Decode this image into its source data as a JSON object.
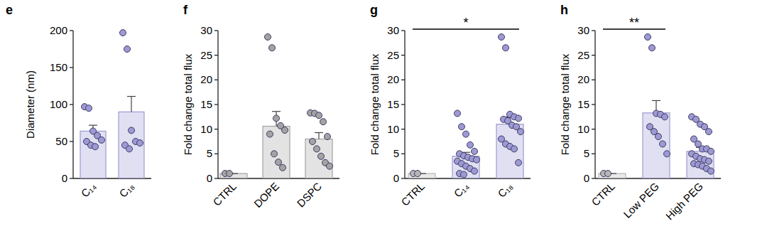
{
  "chart_data": [
    {
      "type": "bar",
      "title": "e",
      "ylabel": "Diameter (nm)",
      "categories": [
        "C₁₄",
        "C₁₈"
      ],
      "values": [
        64,
        90
      ],
      "errors": [
        8,
        21
      ],
      "points": [
        [
          97,
          95,
          64,
          58,
          52,
          50,
          45,
          43
        ],
        [
          197,
          175,
          65,
          50,
          48,
          45,
          40
        ]
      ],
      "colors": [
        "#9d99d3",
        "#9d99d3"
      ],
      "ylim": [
        0,
        200
      ],
      "yticks": [
        0,
        50,
        100,
        150,
        200
      ]
    },
    {
      "type": "bar",
      "title": "f",
      "ylabel": "Fold change total flux",
      "categories": [
        "CTRL",
        "DOPE",
        "DSPC"
      ],
      "values": [
        1,
        10.6,
        8
      ],
      "errors": [
        0,
        3,
        1.3
      ],
      "points": [
        [
          1,
          1
        ],
        [
          28.7,
          26.5,
          12.2,
          10.7,
          9.8,
          9,
          5,
          3.3,
          2.2
        ],
        [
          13.3,
          13.2,
          12.8,
          11.5,
          8.5,
          7.5,
          6,
          4.5,
          3.2,
          2.5
        ]
      ],
      "colors": [
        "#a3a3a3",
        "#a3a3a3",
        "#a3a3a3"
      ],
      "ylim": [
        0,
        30
      ],
      "yticks": [
        0,
        5,
        10,
        15,
        20,
        25,
        30
      ]
    },
    {
      "type": "bar",
      "title": "g",
      "ylabel": "Fold change total flux",
      "categories": [
        "CTRL",
        "C₁₄",
        "C₁₈"
      ],
      "values": [
        1,
        4.5,
        11
      ],
      "errors": [
        0,
        0.8,
        1.5
      ],
      "points": [
        [
          1,
          1
        ],
        [
          13.2,
          10.5,
          9,
          6.8,
          5.5,
          5,
          4.6,
          4.3,
          4,
          3.8,
          3.5,
          3,
          2.5,
          2,
          1.5,
          1,
          0.8
        ],
        [
          28.7,
          26.5,
          13,
          12.5,
          12.2,
          12,
          11.7,
          10.8,
          10.5,
          9.5,
          8,
          7,
          6.5,
          6,
          3.2
        ]
      ],
      "colors": [
        "#b5b5b5",
        "#9d99d3",
        "#9d99d3"
      ],
      "ylim": [
        0,
        30
      ],
      "yticks": [
        0,
        5,
        10,
        15,
        20,
        25,
        30
      ],
      "annotations": [
        {
          "text": "*",
          "between": [
            "CTRL",
            "C₁₈"
          ]
        }
      ]
    },
    {
      "type": "bar",
      "title": "h",
      "ylabel": "Fold change total flux",
      "categories": [
        "CTRL",
        "Low PEG",
        "High PEG"
      ],
      "values": [
        1,
        13.3,
        5.5
      ],
      "errors": [
        0,
        2.5,
        0.8
      ],
      "points": [
        [
          1,
          1
        ],
        [
          28.7,
          26.5,
          13.2,
          13,
          12.5,
          10.5,
          9.5,
          8.5,
          7,
          5
        ],
        [
          12.5,
          12,
          11,
          10.5,
          9.5,
          8,
          7,
          6,
          6,
          5.5,
          5,
          4.5,
          4,
          3.8,
          3.5,
          3,
          2.8,
          2.5,
          2,
          1.5
        ]
      ],
      "colors": [
        "#b5b5b5",
        "#9d99d3",
        "#9d99d3"
      ],
      "ylim": [
        0,
        30
      ],
      "yticks": [
        0,
        5,
        10,
        15,
        20,
        25,
        30
      ],
      "annotations": [
        {
          "text": "**",
          "between": [
            "CTRL",
            "Low PEG"
          ]
        }
      ]
    }
  ]
}
